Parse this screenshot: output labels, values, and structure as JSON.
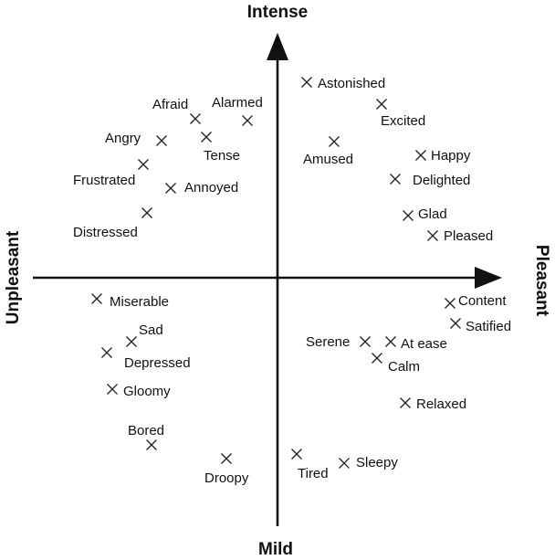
{
  "axes": {
    "top": "Intense",
    "bottom": "Mild",
    "left": "Unpleasant",
    "right": "Pleasant"
  },
  "emotions": [
    {
      "label": "Astonished"
    },
    {
      "label": "Excited"
    },
    {
      "label": "Afraid"
    },
    {
      "label": "Alarmed"
    },
    {
      "label": "Angry"
    },
    {
      "label": "Tense"
    },
    {
      "label": "Amused"
    },
    {
      "label": "Happy"
    },
    {
      "label": "Frustrated"
    },
    {
      "label": "Delighted"
    },
    {
      "label": "Annoyed"
    },
    {
      "label": "Glad"
    },
    {
      "label": "Distressed"
    },
    {
      "label": "Pleased"
    },
    {
      "label": "Miserable"
    },
    {
      "label": "Content"
    },
    {
      "label": "Sad"
    },
    {
      "label": "Satified"
    },
    {
      "label": "Depressed"
    },
    {
      "label": "Serene"
    },
    {
      "label": "At ease"
    },
    {
      "label": "Calm"
    },
    {
      "label": "Gloomy"
    },
    {
      "label": "Relaxed"
    },
    {
      "label": "Bored"
    },
    {
      "label": "Droopy"
    },
    {
      "label": "Tired"
    },
    {
      "label": "Sleepy"
    }
  ]
}
